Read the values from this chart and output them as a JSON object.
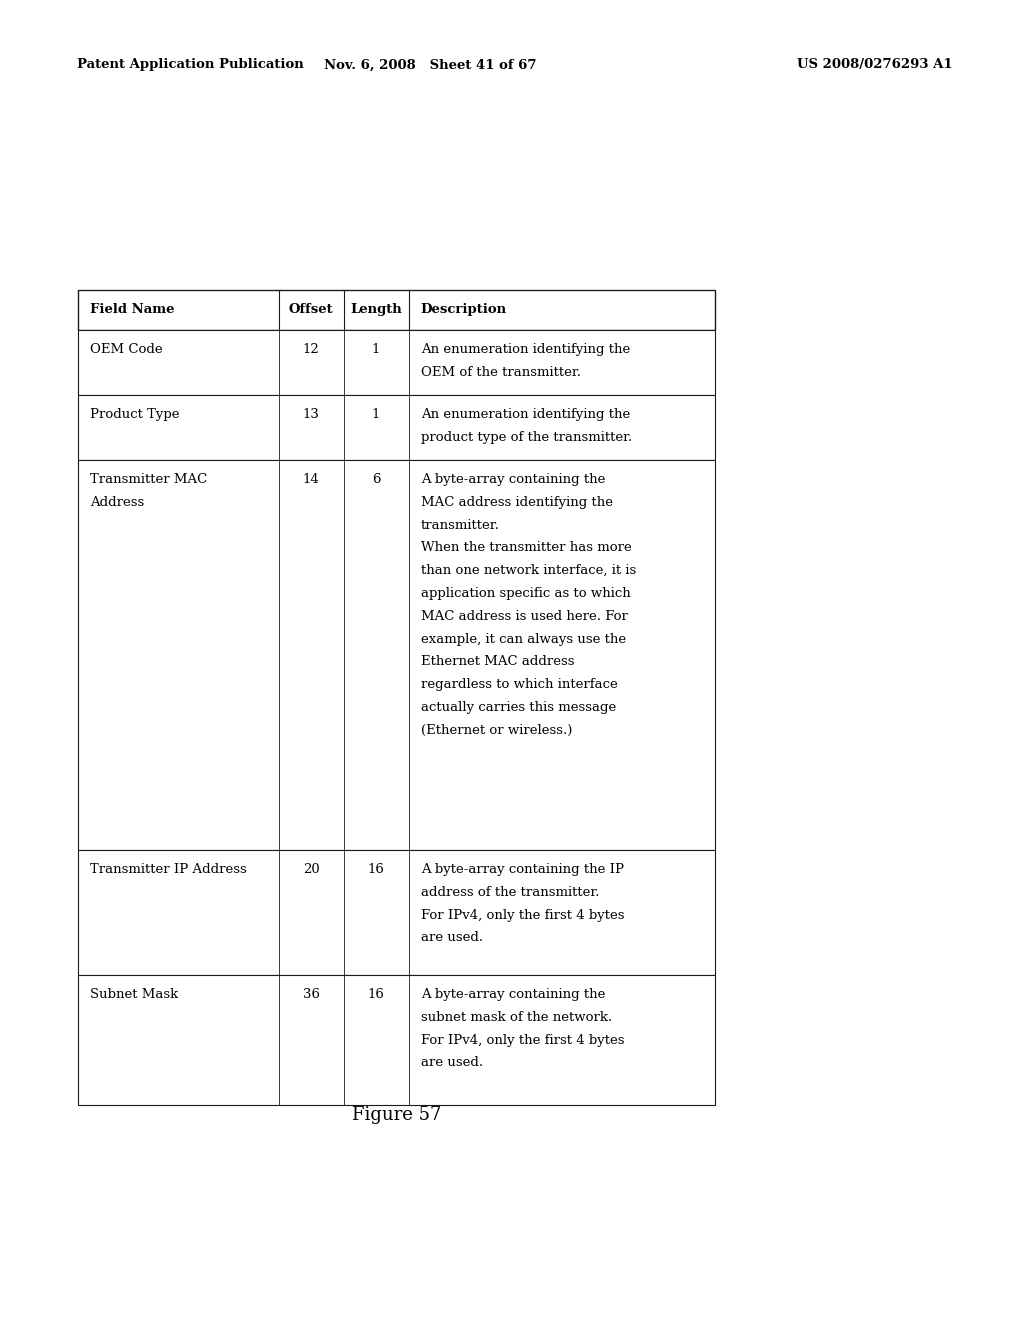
{
  "page_header_left": "Patent Application Publication",
  "page_header_middle": "Nov. 6, 2008   Sheet 41 of 67",
  "page_header_right": "US 2008/0276293 A1",
  "figure_caption": "Figure 57",
  "background_color": "#ffffff",
  "table": {
    "columns": [
      "Field Name",
      "Offset",
      "Length",
      "Description"
    ],
    "rows": [
      {
        "field": "OEM Code",
        "offset": "12",
        "length": "1",
        "description": [
          "An enumeration identifying the",
          "OEM of the transmitter."
        ]
      },
      {
        "field": "Product Type",
        "offset": "13",
        "length": "1",
        "description": [
          "An enumeration identifying the",
          "product type of the transmitter."
        ]
      },
      {
        "field": "Transmitter MAC\nAddress",
        "offset": "14",
        "length": "6",
        "description": [
          "A byte-array containing the",
          "MAC address identifying the",
          "transmitter.",
          "When the transmitter has more",
          "than one network interface, it is",
          "application specific as to which",
          "MAC address is used here. For",
          "example, it can always use the",
          "Ethernet MAC address",
          "regardless to which interface",
          "actually carries this message",
          "(Ethernet or wireless.)"
        ]
      },
      {
        "field": "Transmitter IP Address",
        "offset": "20",
        "length": "16",
        "description": [
          "A byte-array containing the IP",
          "address of the transmitter.",
          "For IPv4, only the first 4 bytes",
          "are used."
        ]
      },
      {
        "field": "Subnet Mask",
        "offset": "36",
        "length": "16",
        "description": [
          "A byte-array containing the",
          "subnet mask of the network.",
          "For IPv4, only the first 4 bytes",
          "are used."
        ]
      }
    ]
  }
}
